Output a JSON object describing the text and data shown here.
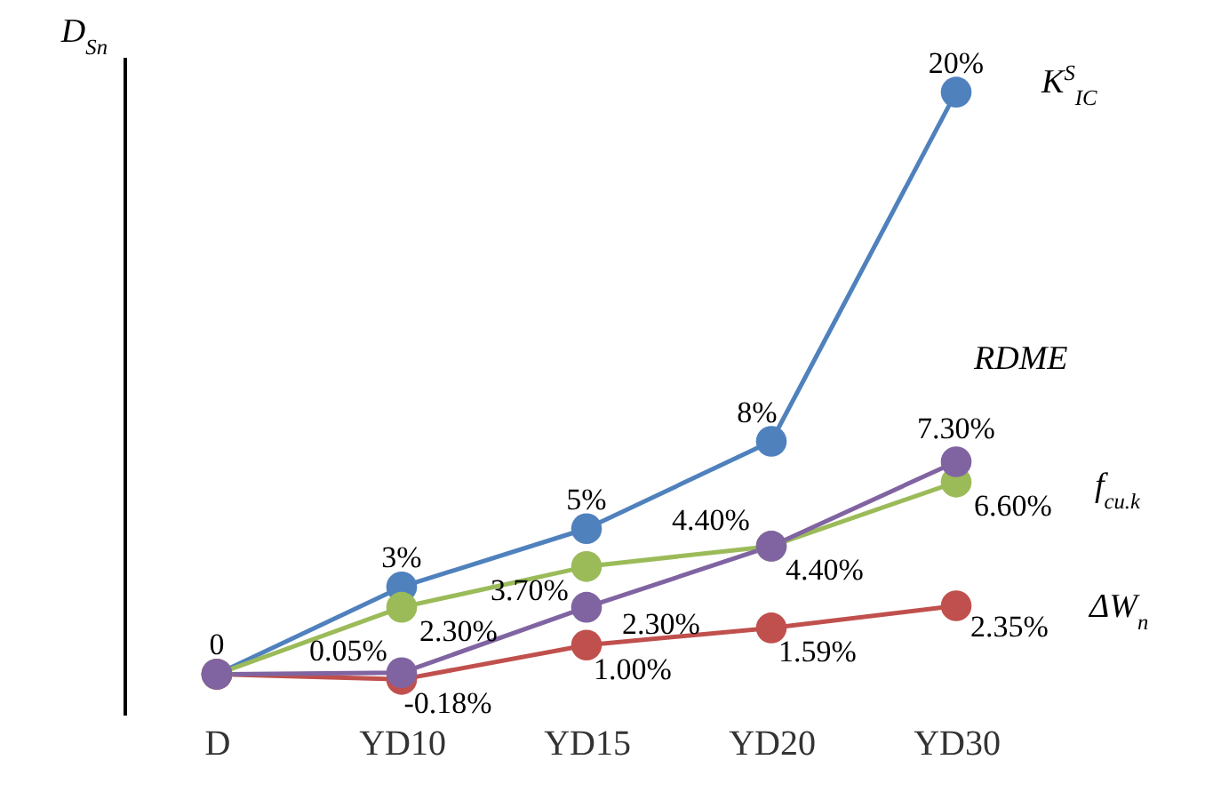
{
  "chart_data": {
    "type": "line",
    "ylabel": "D$_{Sn}$",
    "categories": [
      "D",
      "YD10",
      "YD15",
      "YD20",
      "YD30"
    ],
    "marker": "circle",
    "line_style": "solid",
    "grid": false,
    "series": [
      {
        "name": "K$^{S}$$_{IC}$",
        "color": "#4f81bd",
        "values": [
          0,
          3,
          5,
          8,
          20
        ],
        "value_labels": [
          null,
          "3%",
          "5%",
          "8%",
          "20%"
        ]
      },
      {
        "name": "f$_{cu.k}$",
        "color": "#9bbb59",
        "values": [
          0,
          2.3,
          3.7,
          4.4,
          6.6
        ],
        "value_labels": [
          null,
          "2.30%",
          "3.70%",
          "4.40%",
          "6.60%"
        ]
      },
      {
        "name": "ΔW$_{n}$",
        "color": "#c0504d",
        "values": [
          0,
          -0.18,
          1.0,
          1.59,
          2.35
        ],
        "value_labels": [
          null,
          "-0.18%",
          "1.00%",
          "1.59%",
          "2.35%"
        ]
      },
      {
        "name": "RDME",
        "color": "#8064a2",
        "values": [
          0,
          0.05,
          2.3,
          4.4,
          7.3
        ],
        "value_labels": [
          "0",
          "0.05%",
          "2.30%",
          "4.40%",
          "7.30%"
        ]
      }
    ]
  }
}
